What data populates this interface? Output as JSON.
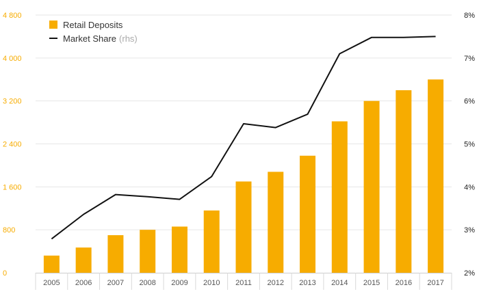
{
  "chart_data": {
    "type": "bar+line",
    "categories": [
      "2005",
      "2006",
      "2007",
      "2008",
      "2009",
      "2010",
      "2011",
      "2012",
      "2013",
      "2014",
      "2015",
      "2016",
      "2017"
    ],
    "series": [
      {
        "name": "Retail Deposits",
        "type": "bar",
        "axis": "left",
        "color": "#F7AC00",
        "values": [
          320,
          470,
          700,
          800,
          860,
          1160,
          1700,
          1880,
          2180,
          2820,
          3200,
          3400,
          3600
        ]
      },
      {
        "name": "Market Share",
        "name_suffix": "(rhs)",
        "type": "line",
        "axis": "right",
        "color": "#111111",
        "values": [
          2.79,
          3.36,
          3.82,
          3.77,
          3.71,
          4.24,
          5.47,
          5.38,
          5.69,
          7.1,
          7.48,
          7.48,
          7.5
        ]
      }
    ],
    "y_left": {
      "ticks": [
        0,
        800,
        1600,
        2400,
        3200,
        4000,
        4800
      ],
      "tick_labels": [
        "0",
        "800",
        "1 600",
        "2 400",
        "3 200",
        "4 000",
        "4 800"
      ],
      "ylim": [
        0,
        4800
      ],
      "color": "#F7AC00"
    },
    "y_right": {
      "ticks": [
        2,
        3,
        4,
        5,
        6,
        7,
        8
      ],
      "tick_labels": [
        "2%",
        "3%",
        "4%",
        "5%",
        "6%",
        "7%",
        "8%"
      ],
      "ylim": [
        2,
        8
      ],
      "color": "#222222"
    },
    "grid": true,
    "legend_position": "top-left",
    "title": "",
    "xlabel": "",
    "ylabel": ""
  }
}
